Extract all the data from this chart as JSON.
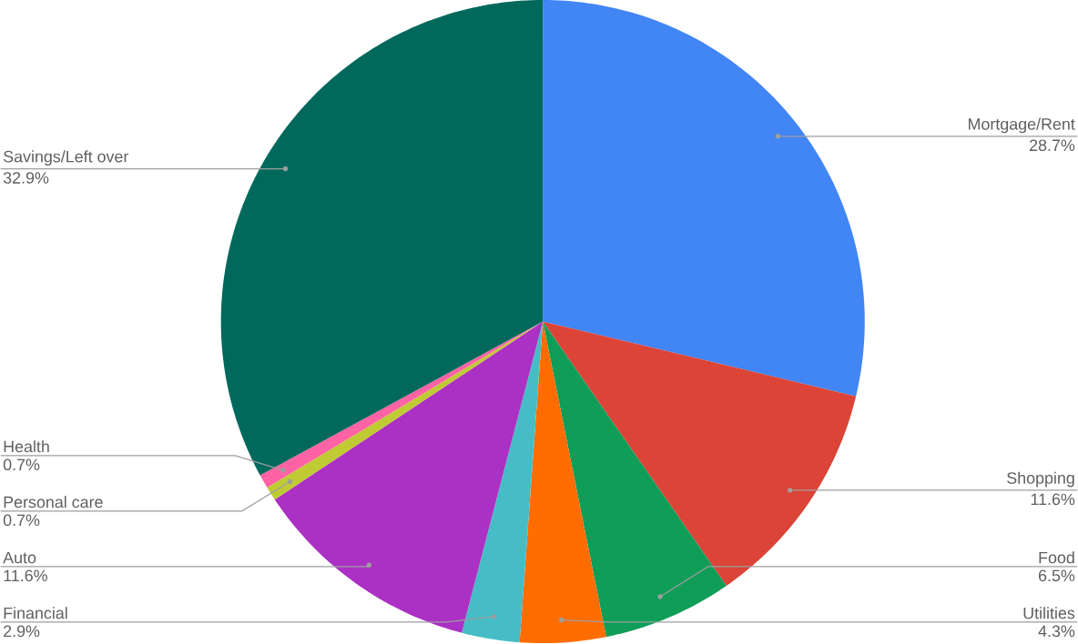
{
  "chart_data": {
    "type": "pie",
    "categories": [
      "Mortgage/Rent",
      "Shopping",
      "Food",
      "Utilities",
      "Financial",
      "Auto",
      "Personal care",
      "Health",
      "Savings/Left over"
    ],
    "values": [
      28.7,
      11.6,
      6.5,
      4.3,
      2.9,
      11.6,
      0.7,
      0.7,
      32.9
    ],
    "colors": [
      "#4285f4",
      "#db4437",
      "#0f9d58",
      "#ff6d01",
      "#46bdc6",
      "#ab30c4",
      "#c0ca33",
      "#ff63a5",
      "#00695c"
    ],
    "value_labels": [
      "28.7%",
      "11.6%",
      "6.5%",
      "4.3%",
      "2.9%",
      "11.6%",
      "0.7%",
      "0.7%",
      "32.9%"
    ]
  }
}
